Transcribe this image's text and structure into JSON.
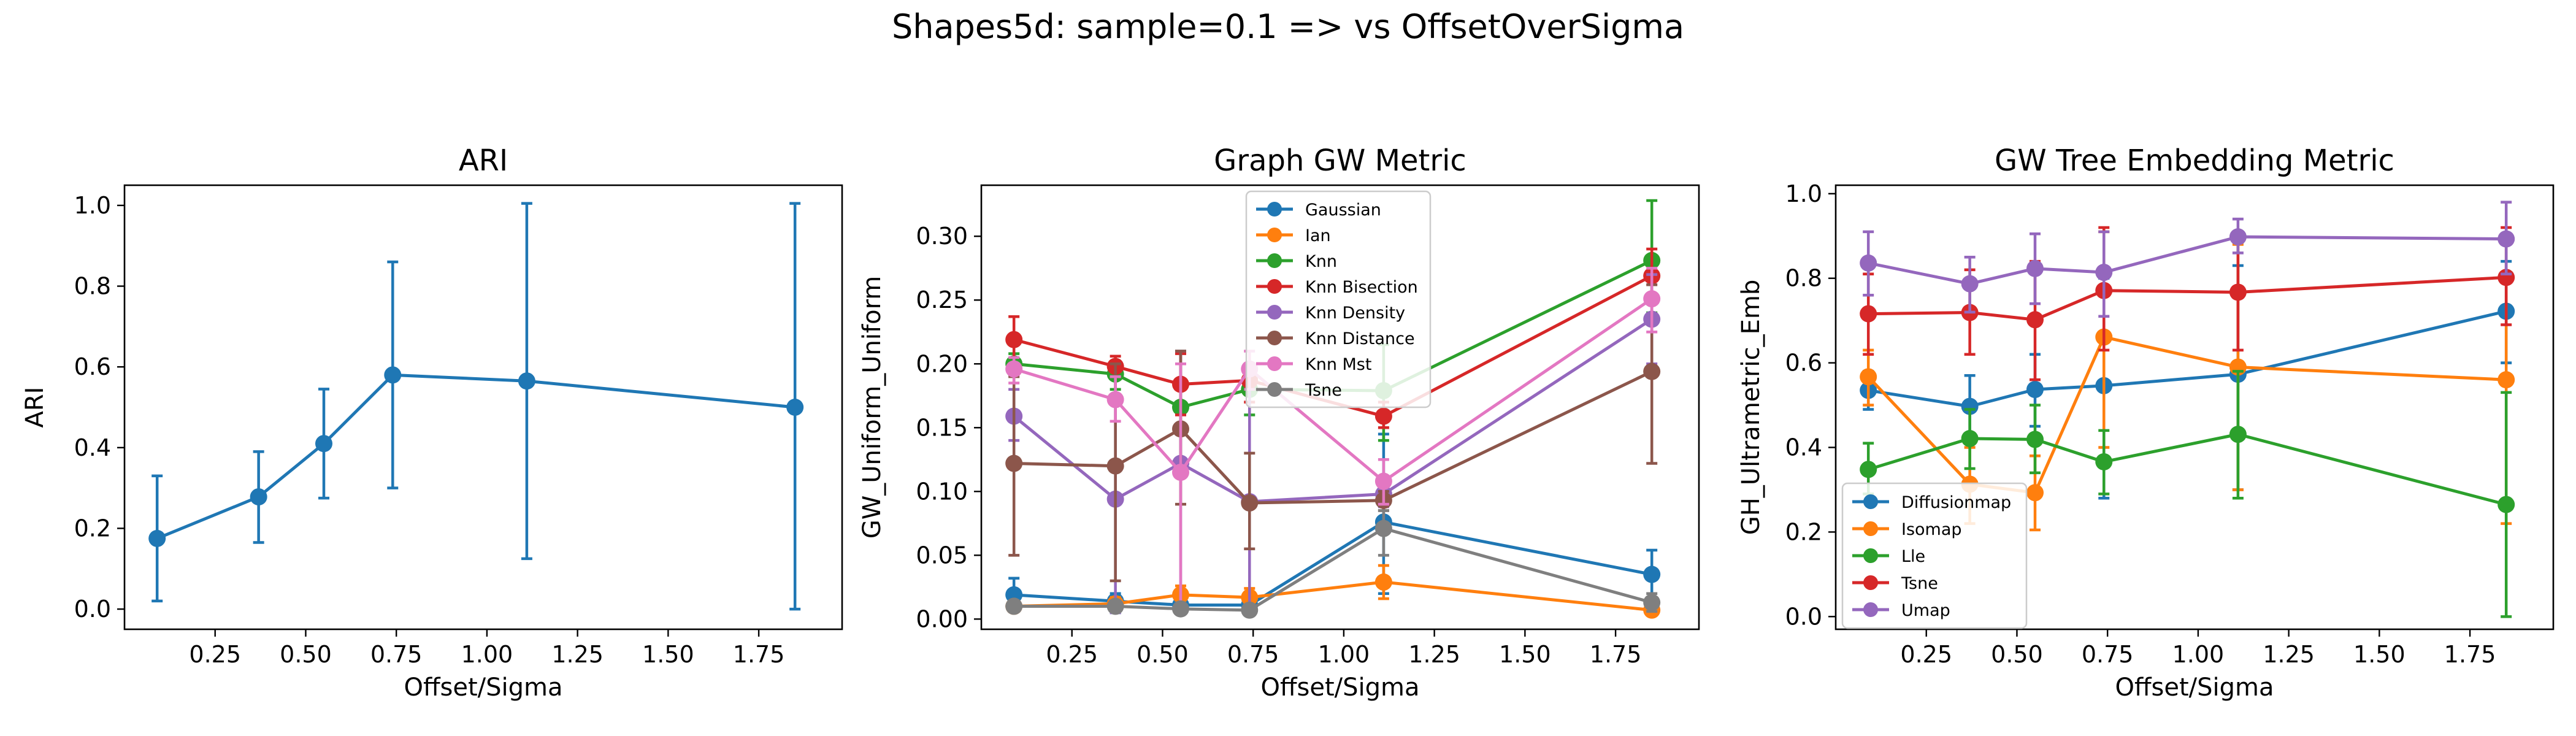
{
  "figure": {
    "title": "Shapes5d: sample=0.1 => vs OffsetOverSigma"
  },
  "chart_data": [
    {
      "type": "line",
      "title": "ARI",
      "xlabel": "Offset/Sigma",
      "ylabel": "ARI",
      "xlim": [
        0.0,
        1.98
      ],
      "ylim": [
        -0.05,
        1.05
      ],
      "xticks": [
        0.25,
        0.5,
        0.75,
        1.0,
        1.25,
        1.5,
        1.75
      ],
      "xtick_labels": [
        "0.25",
        "0.50",
        "0.75",
        "1.00",
        "1.25",
        "1.50",
        "1.75"
      ],
      "yticks": [
        0.0,
        0.2,
        0.4,
        0.6,
        0.8,
        1.0
      ],
      "ytick_labels": [
        "0.0",
        "0.2",
        "0.4",
        "0.6",
        "0.8",
        "1.0"
      ],
      "legend": null,
      "x": [
        0.09,
        0.37,
        0.55,
        0.74,
        1.11,
        1.85
      ],
      "series": [
        {
          "name": "",
          "color": "#1f77b4",
          "values": [
            0.175,
            0.278,
            0.41,
            0.58,
            0.565,
            0.5
          ],
          "err_low": [
            0.02,
            0.165,
            0.275,
            0.3,
            0.125,
            0.0
          ],
          "err_high": [
            0.33,
            0.39,
            0.545,
            0.86,
            1.005,
            1.005
          ]
        }
      ]
    },
    {
      "type": "line",
      "title": "Graph GW Metric",
      "xlabel": "Offset/Sigma",
      "ylabel": "GW_Uniform_Uniform",
      "xlim": [
        0.0,
        1.98
      ],
      "ylim": [
        -0.008,
        0.34
      ],
      "xticks": [
        0.25,
        0.5,
        0.75,
        1.0,
        1.25,
        1.5,
        1.75
      ],
      "xtick_labels": [
        "0.25",
        "0.50",
        "0.75",
        "1.00",
        "1.25",
        "1.50",
        "1.75"
      ],
      "yticks": [
        0.0,
        0.05,
        0.1,
        0.15,
        0.2,
        0.25,
        0.3
      ],
      "ytick_labels": [
        "0.00",
        "0.05",
        "0.10",
        "0.15",
        "0.20",
        "0.25",
        "0.30"
      ],
      "legend": "upper center",
      "x": [
        0.09,
        0.37,
        0.55,
        0.74,
        1.11,
        1.85
      ],
      "series": [
        {
          "name": "Gaussian",
          "color": "#1f77b4",
          "values": [
            0.019,
            0.014,
            0.011,
            0.011,
            0.076,
            0.035
          ],
          "err_low": [
            0.008,
            0.005,
            0.005,
            0.004,
            0.02,
            0.015
          ],
          "err_high": [
            0.032,
            0.02,
            0.016,
            0.016,
            0.145,
            0.054
          ]
        },
        {
          "name": "Ian",
          "color": "#ff7f0e",
          "values": [
            0.01,
            0.012,
            0.019,
            0.017,
            0.029,
            0.007
          ],
          "err_low": [
            0.006,
            0.007,
            0.012,
            0.01,
            0.016,
            0.004
          ],
          "err_high": [
            0.014,
            0.017,
            0.026,
            0.024,
            0.042,
            0.01
          ]
        },
        {
          "name": "Knn",
          "color": "#2ca02c",
          "values": [
            0.2,
            0.192,
            0.166,
            0.18,
            0.179,
            0.281
          ],
          "err_low": [
            0.192,
            0.18,
            0.12,
            0.16,
            0.14,
            0.24
          ],
          "err_high": [
            0.208,
            0.2,
            0.21,
            0.2,
            0.215,
            0.328
          ]
        },
        {
          "name": "Knn Bisection",
          "color": "#d62728",
          "values": [
            0.219,
            0.198,
            0.184,
            0.187,
            0.159,
            0.269
          ],
          "err_low": [
            0.2,
            0.19,
            0.16,
            0.17,
            0.15,
            0.25
          ],
          "err_high": [
            0.237,
            0.206,
            0.208,
            0.2,
            0.17,
            0.29
          ]
        },
        {
          "name": "Knn Density",
          "color": "#9467bd",
          "values": [
            0.159,
            0.094,
            0.122,
            0.092,
            0.098,
            0.235
          ],
          "err_low": [
            0.14,
            0.005,
            0.008,
            0.01,
            0.088,
            0.2
          ],
          "err_high": [
            0.18,
            0.19,
            0.21,
            0.2,
            0.11,
            0.27
          ]
        },
        {
          "name": "Knn Distance",
          "color": "#8c564b",
          "values": [
            0.122,
            0.12,
            0.149,
            0.091,
            0.093,
            0.194
          ],
          "err_low": [
            0.05,
            0.03,
            0.09,
            0.055,
            0.085,
            0.122
          ],
          "err_high": [
            0.19,
            0.2,
            0.21,
            0.13,
            0.1,
            0.262
          ]
        },
        {
          "name": "Knn Mst",
          "color": "#e377c2",
          "values": [
            0.196,
            0.172,
            0.115,
            0.196,
            0.108,
            0.251
          ],
          "err_low": [
            0.185,
            0.155,
            0.005,
            0.18,
            0.09,
            0.225
          ],
          "err_high": [
            0.205,
            0.19,
            0.2,
            0.21,
            0.125,
            0.275
          ]
        },
        {
          "name": "Tsne",
          "color": "#7f7f7f",
          "values": [
            0.01,
            0.01,
            0.008,
            0.007,
            0.071,
            0.013
          ],
          "err_low": [
            0.007,
            0.007,
            0.006,
            0.005,
            0.05,
            0.006
          ],
          "err_high": [
            0.014,
            0.013,
            0.011,
            0.01,
            0.085,
            0.02
          ]
        }
      ]
    },
    {
      "type": "line",
      "title": "GW Tree Embedding Metric",
      "xlabel": "Offset/Sigma",
      "ylabel": "GH_Ultrametric_Emb",
      "xlim": [
        0.0,
        1.98
      ],
      "ylim": [
        -0.03,
        1.02
      ],
      "xticks": [
        0.25,
        0.5,
        0.75,
        1.0,
        1.25,
        1.5,
        1.75
      ],
      "xtick_labels": [
        "0.25",
        "0.50",
        "0.75",
        "1.00",
        "1.25",
        "1.50",
        "1.75"
      ],
      "yticks": [
        0.0,
        0.2,
        0.4,
        0.6,
        0.8,
        1.0
      ],
      "ytick_labels": [
        "0.0",
        "0.2",
        "0.4",
        "0.6",
        "0.8",
        "1.0"
      ],
      "legend": "lower left",
      "x": [
        0.09,
        0.37,
        0.55,
        0.74,
        1.11,
        1.85
      ],
      "series": [
        {
          "name": "Diffusionmap",
          "color": "#1f77b4",
          "values": [
            0.535,
            0.497,
            0.537,
            0.546,
            0.573,
            0.722
          ],
          "err_low": [
            0.49,
            0.42,
            0.45,
            0.28,
            0.3,
            0.6
          ],
          "err_high": [
            0.58,
            0.57,
            0.62,
            0.8,
            0.83,
            0.84
          ]
        },
        {
          "name": "Isomap",
          "color": "#ff7f0e",
          "values": [
            0.567,
            0.313,
            0.293,
            0.661,
            0.59,
            0.56
          ],
          "err_low": [
            0.5,
            0.22,
            0.205,
            0.4,
            0.3,
            0.22
          ],
          "err_high": [
            0.63,
            0.4,
            0.38,
            0.91,
            0.88,
            0.9
          ]
        },
        {
          "name": "Lle",
          "color": "#2ca02c",
          "values": [
            0.348,
            0.421,
            0.419,
            0.366,
            0.431,
            0.265
          ],
          "err_low": [
            0.29,
            0.35,
            0.34,
            0.29,
            0.28,
            0.0
          ],
          "err_high": [
            0.41,
            0.49,
            0.5,
            0.44,
            0.58,
            0.53
          ]
        },
        {
          "name": "Tsne",
          "color": "#d62728",
          "values": [
            0.716,
            0.719,
            0.702,
            0.771,
            0.767,
            0.802
          ],
          "err_low": [
            0.62,
            0.62,
            0.56,
            0.63,
            0.63,
            0.69
          ],
          "err_high": [
            0.81,
            0.82,
            0.84,
            0.92,
            0.9,
            0.92
          ]
        },
        {
          "name": "Umap",
          "color": "#9467bd",
          "values": [
            0.836,
            0.787,
            0.823,
            0.814,
            0.898,
            0.893
          ],
          "err_low": [
            0.76,
            0.72,
            0.74,
            0.71,
            0.86,
            0.81
          ],
          "err_high": [
            0.91,
            0.85,
            0.905,
            0.91,
            0.94,
            0.98
          ]
        }
      ]
    }
  ]
}
